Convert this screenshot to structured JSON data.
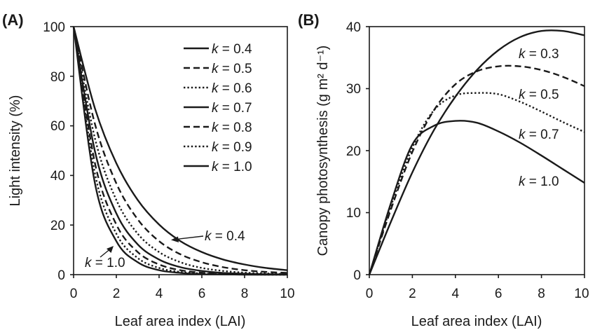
{
  "chart_data": [
    {
      "type": "line",
      "panel_label": "(A)",
      "xlabel": "Leaf area index (LAI)",
      "ylabel": "Light intensity (%)",
      "xlim": [
        0,
        10
      ],
      "ylim": [
        0,
        100
      ],
      "xticks": [
        "0",
        "2",
        "4",
        "6",
        "8",
        "10"
      ],
      "yticks": [
        "0",
        "20",
        "40",
        "60",
        "80",
        "100"
      ],
      "grid": false,
      "legend_position": "top-right",
      "x": [
        0,
        1,
        2,
        3,
        4,
        5,
        6,
        7,
        8,
        9,
        10
      ],
      "series": [
        {
          "name": "k = 0.4",
          "style": "solid",
          "values": [
            100,
            67.0,
            44.9,
            30.1,
            20.2,
            13.5,
            9.1,
            6.1,
            4.1,
            2.7,
            1.8
          ]
        },
        {
          "name": "k = 0.5",
          "style": "dashed",
          "values": [
            100,
            60.7,
            36.8,
            22.3,
            13.5,
            8.2,
            5.0,
            3.0,
            1.8,
            1.1,
            0.7
          ]
        },
        {
          "name": "k = 0.6",
          "style": "dotted",
          "values": [
            100,
            54.9,
            30.1,
            16.5,
            9.1,
            5.0,
            2.7,
            1.5,
            0.8,
            0.5,
            0.2
          ]
        },
        {
          "name": "k = 0.7",
          "style": "solid",
          "values": [
            100,
            49.7,
            24.7,
            12.2,
            6.1,
            3.0,
            1.5,
            0.7,
            0.4,
            0.2,
            0.1
          ]
        },
        {
          "name": "k = 0.8",
          "style": "dashed",
          "values": [
            100,
            44.9,
            20.2,
            9.1,
            4.1,
            1.8,
            0.8,
            0.4,
            0.2,
            0.1,
            0.0
          ]
        },
        {
          "name": "k = 0.9",
          "style": "dotted",
          "values": [
            100,
            40.7,
            16.5,
            6.7,
            2.7,
            1.1,
            0.5,
            0.2,
            0.1,
            0.0,
            0.0
          ]
        },
        {
          "name": "k = 1.0",
          "style": "solid",
          "values": [
            100,
            36.8,
            13.5,
            5.0,
            1.8,
            0.7,
            0.2,
            0.1,
            0.0,
            0.0,
            0.0
          ]
        }
      ],
      "annotations": [
        {
          "text": "k = 0.4",
          "points_to_x": 4.6,
          "points_to_y": 15.8
        },
        {
          "text": "k = 1.0",
          "points_to_x": 1.8,
          "points_to_y": 11.0
        }
      ]
    },
    {
      "type": "line",
      "panel_label": "(B)",
      "xlabel": "Leaf area index (LAI)",
      "ylabel": "Canopy photosynthesis (g m² d⁻¹)",
      "xlim": [
        0,
        10
      ],
      "ylim": [
        0,
        40
      ],
      "xticks": [
        "0",
        "2",
        "4",
        "6",
        "8",
        "10"
      ],
      "yticks": [
        "0",
        "10",
        "20",
        "30",
        "40"
      ],
      "grid": false,
      "x": [
        0,
        1,
        2,
        3,
        4,
        5,
        6,
        7,
        8,
        9,
        10
      ],
      "series": [
        {
          "name": "k = 0.3",
          "style": "solid",
          "values": [
            0,
            8.5,
            16.5,
            23.3,
            28.7,
            33.0,
            36.2,
            38.3,
            39.3,
            39.3,
            38.6
          ]
        },
        {
          "name": "k = 0.5",
          "style": "dashed",
          "values": [
            0,
            10.5,
            19.8,
            26.5,
            30.7,
            32.8,
            33.6,
            33.6,
            33.0,
            31.9,
            30.4
          ]
        },
        {
          "name": "k = 0.7",
          "style": "dotted",
          "values": [
            0,
            11.0,
            20.5,
            26.5,
            28.9,
            29.3,
            29.1,
            27.9,
            26.3,
            24.6,
            23.0
          ]
        },
        {
          "name": "k = 1.0",
          "style": "solid",
          "values": [
            0,
            11.5,
            21.0,
            24.0,
            24.8,
            24.5,
            23.1,
            21.3,
            19.2,
            17.0,
            14.8
          ]
        }
      ]
    }
  ]
}
